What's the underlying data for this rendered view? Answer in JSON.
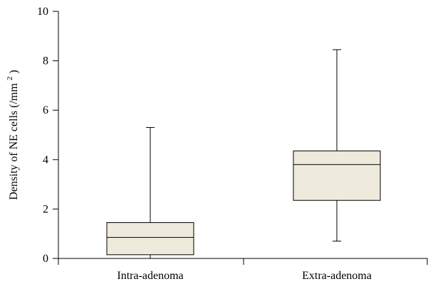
{
  "chart_data": {
    "type": "box",
    "title": "",
    "xlabel": "",
    "ylabel": "Density of NE cells (/mm",
    "ylabel_superscript": "2",
    "ylabel_suffix": ")",
    "ylim": [
      0,
      10
    ],
    "yticks": [
      0,
      2,
      4,
      6,
      8,
      10
    ],
    "grid": false,
    "box_fill": "#eeebdd",
    "categories": [
      "Intra-adenoma",
      "Extra-adenoma"
    ],
    "boxes": [
      {
        "category": "Intra-adenoma",
        "min": 0,
        "q1": 0.15,
        "median": 0.85,
        "q3": 1.45,
        "max": 5.3
      },
      {
        "category": "Extra-adenoma",
        "min": 0.7,
        "q1": 2.35,
        "median": 3.8,
        "q3": 4.35,
        "max": 8.45
      }
    ]
  }
}
